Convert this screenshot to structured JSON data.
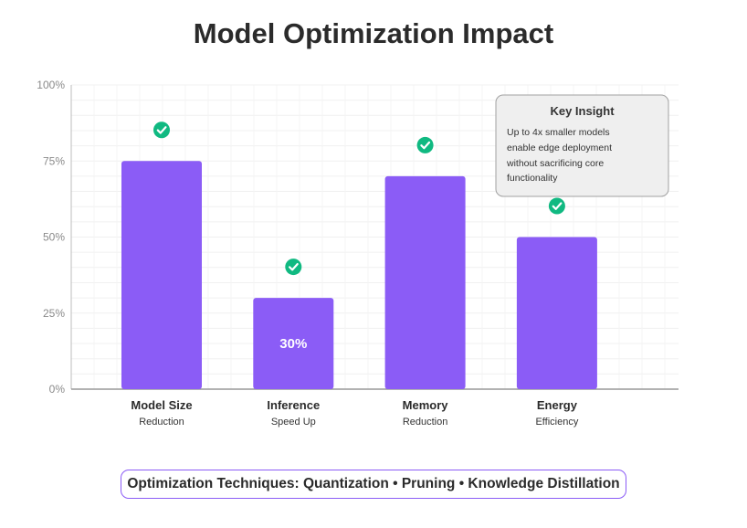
{
  "chart_data": {
    "type": "bar",
    "title": "Model Optimization Impact",
    "categories": [
      {
        "label": "Model Size",
        "sublabel": "Reduction"
      },
      {
        "label": "Inference",
        "sublabel": "Speed Up"
      },
      {
        "label": "Memory",
        "sublabel": "Reduction"
      },
      {
        "label": "Energy",
        "sublabel": "Efficiency"
      }
    ],
    "values": [
      75,
      30,
      70,
      50
    ],
    "data_labels": [
      "",
      "30%",
      "",
      ""
    ],
    "ylim": [
      0,
      100
    ],
    "yticks": [
      "0%",
      "25%",
      "50%",
      "75%",
      "100%"
    ],
    "grid": true,
    "bar_color": "#8b5cf6",
    "check_color": "#10b981",
    "check_icon": "check-circle-icon",
    "annotation": {
      "title": "Key Insight",
      "lines": [
        "Up to 4x smaller models",
        "enable edge deployment",
        "without sacrificing core",
        "functionality"
      ]
    }
  },
  "footer": {
    "text": "Optimization Techniques: Quantization • Pruning • Knowledge Distillation"
  }
}
